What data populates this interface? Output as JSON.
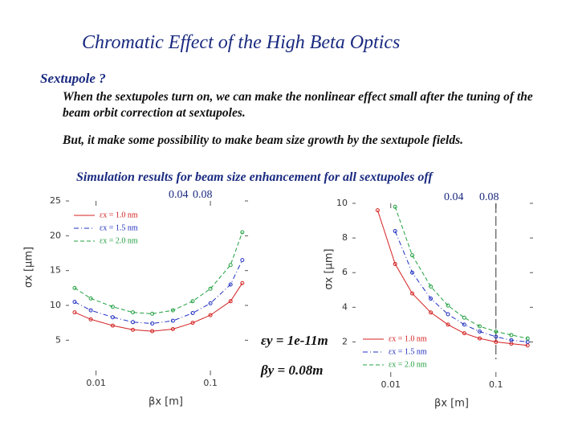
{
  "slide": {
    "title": "Chromatic Effect of the High Beta Optics",
    "heading": "Sextupole ?",
    "paragraphs": [
      "When the sextupoles turn on, we can make the nonlinear effect small after the tuning of the beam orbit correction at sextupoles.",
      "But, it make some possibility to make beam size growth by the sextupole fields."
    ],
    "caption": "Simulation results for beam size enhancement for all sextupoles off"
  },
  "chart_data": [
    {
      "type": "line",
      "xlabel": "βx [m]",
      "ylabel": "σx [μm]",
      "annotations": [
        "0.04",
        "0.08",
        "εy = 1e-11m",
        "βy = 0.08m"
      ],
      "log_x": true,
      "xlim": [
        0.006,
        0.2
      ],
      "xticks": [
        0.01,
        0.1
      ],
      "ylim": [
        2.5,
        25
      ],
      "yticks": [
        5,
        10,
        15,
        20,
        25
      ],
      "legend": "upper left",
      "x": [
        0.0065,
        0.009,
        0.014,
        0.021,
        0.031,
        0.047,
        0.07,
        0.1,
        0.15,
        0.19
      ],
      "series": [
        {
          "name": "εx = 1.0 nm",
          "color": "#d42020",
          "line_style": "solid",
          "values": [
            9.0,
            8.0,
            7.1,
            6.5,
            6.3,
            6.6,
            7.5,
            8.6,
            10.6,
            13.2
          ]
        },
        {
          "name": "εx = 1.5 nm",
          "color": "#2030c0",
          "line_style": "dashdot",
          "values": [
            10.5,
            9.3,
            8.3,
            7.6,
            7.4,
            7.8,
            8.9,
            10.3,
            13.0,
            16.5
          ]
        },
        {
          "name": "εx = 2.0 nm",
          "color": "#20a040",
          "line_style": "dashed",
          "values": [
            12.5,
            11.0,
            9.8,
            9.0,
            8.8,
            9.3,
            10.6,
            12.4,
            15.8,
            20.5
          ]
        }
      ]
    },
    {
      "type": "line",
      "xlabel": "βx [m]",
      "ylabel": "σx [μm]",
      "annotations": [
        "0.04",
        "0.08"
      ],
      "log_x": true,
      "xlim": [
        0.0048,
        0.21
      ],
      "xticks": [
        0.01,
        0.1
      ],
      "ylim": [
        1,
        10
      ],
      "yticks": [
        2,
        4,
        6,
        8,
        10
      ],
      "legend": "lower left",
      "x": [
        0.0075,
        0.011,
        0.016,
        0.024,
        0.035,
        0.05,
        0.07,
        0.1,
        0.14,
        0.2
      ],
      "series": [
        {
          "name": "εx = 1.0 nm",
          "color": "#d42020",
          "line_style": "solid",
          "values": [
            9.6,
            6.5,
            4.8,
            3.7,
            3.0,
            2.5,
            2.2,
            2.0,
            1.9,
            1.8
          ]
        },
        {
          "name": "εx = 1.5 nm",
          "color": "#2030c0",
          "line_style": "dashdot",
          "values": [
            null,
            8.4,
            6.0,
            4.5,
            3.6,
            3.0,
            2.6,
            2.3,
            2.1,
            2.0
          ]
        },
        {
          "name": "εx = 2.0 nm",
          "color": "#20a040",
          "line_style": "dashed",
          "values": [
            null,
            9.8,
            7.0,
            5.2,
            4.1,
            3.4,
            2.9,
            2.6,
            2.4,
            2.2
          ]
        }
      ]
    }
  ]
}
